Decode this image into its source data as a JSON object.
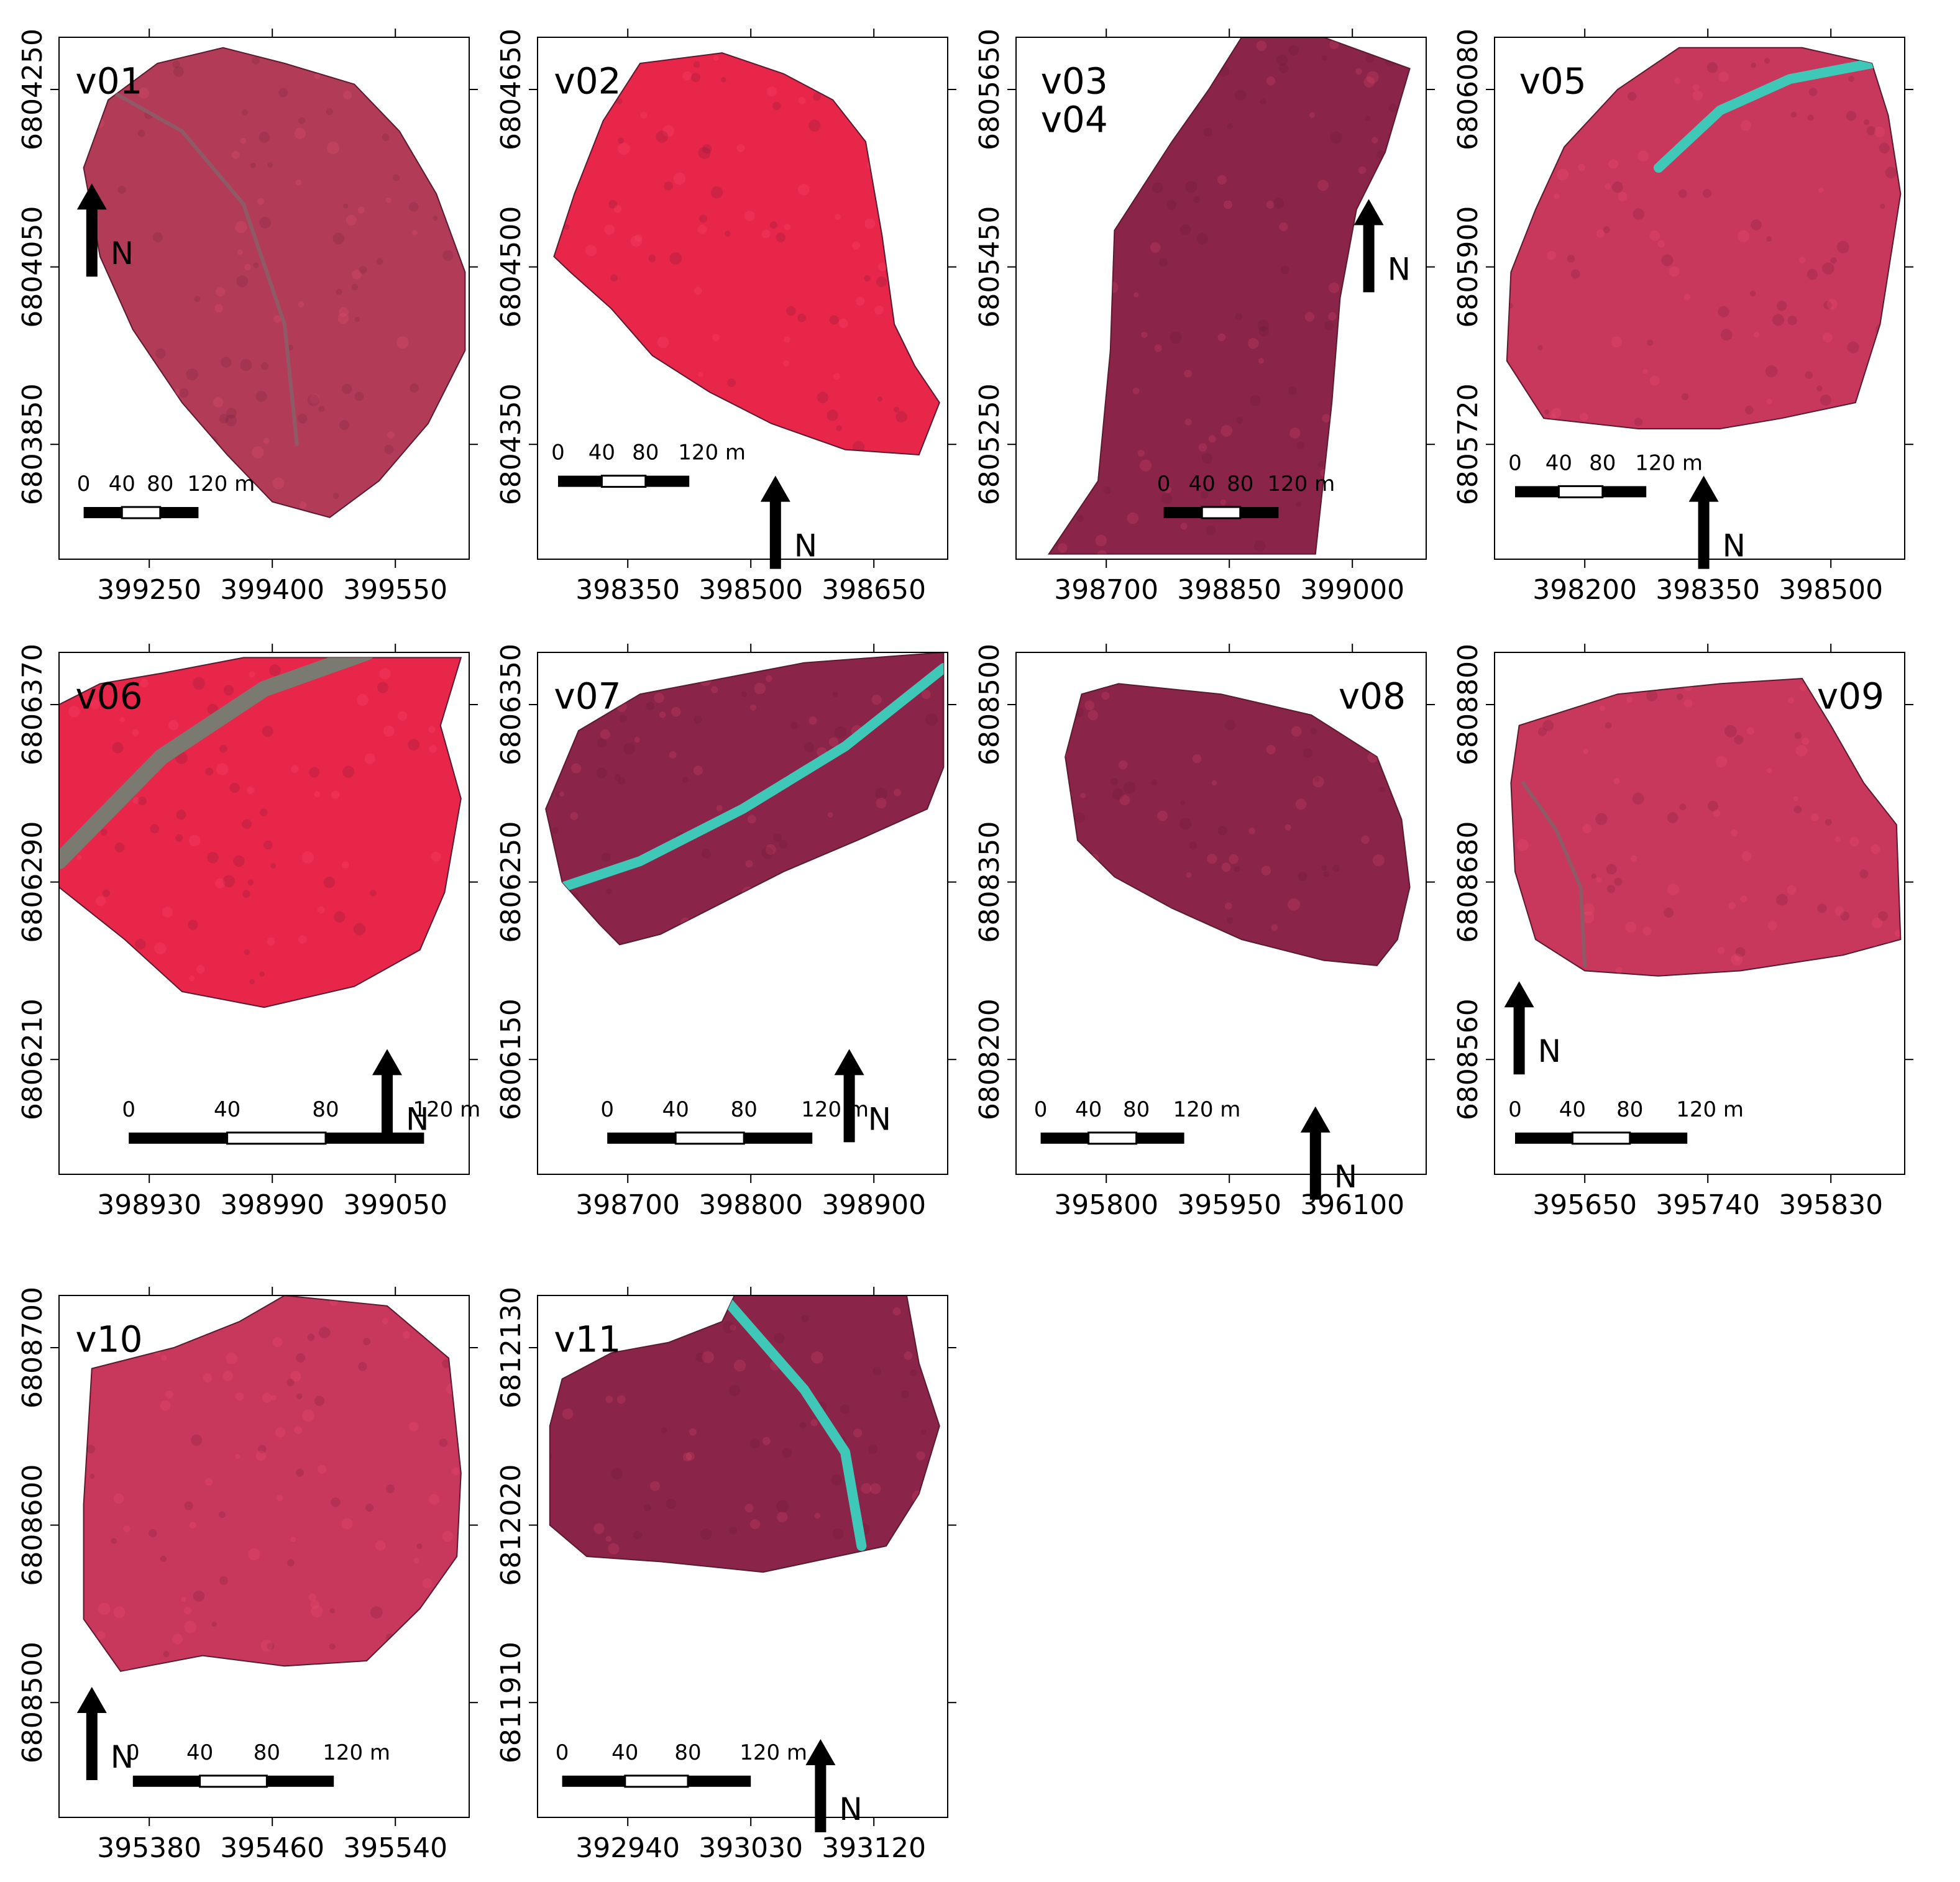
{
  "figure": {
    "panels": [
      {
        "id": "p1",
        "labels": [
          "v01"
        ],
        "x_ticks": [
          "399250",
          "399400",
          "399550"
        ],
        "y_ticks": [
          "6804250",
          "6804050",
          "6803850"
        ],
        "y_ticks_side": "left",
        "scale": {
          "ticks": [
            "0",
            "40",
            "80",
            "120 m"
          ]
        },
        "north": "N",
        "road": "faint",
        "tone": "dull"
      },
      {
        "id": "p2",
        "labels": [
          "v02"
        ],
        "x_ticks": [
          "398350",
          "398500",
          "398650"
        ],
        "y_ticks": [
          "6804650",
          "6804500",
          "6804350"
        ],
        "y_ticks_side": "left",
        "scale": {
          "ticks": [
            "0",
            "40",
            "80",
            "120 m"
          ]
        },
        "north": "N",
        "road": "none",
        "tone": "bright"
      },
      {
        "id": "p3",
        "labels": [
          "v03",
          "v04"
        ],
        "x_ticks": [
          "398700",
          "398850",
          "399000"
        ],
        "y_ticks": [
          "6805650",
          "6805450",
          "6805250"
        ],
        "y_ticks_side": "left",
        "scale": {
          "ticks": [
            "0",
            "40",
            "80",
            "120 m"
          ]
        },
        "north": "N",
        "road": "none",
        "tone": "dark"
      },
      {
        "id": "p4",
        "labels": [
          "v05"
        ],
        "x_ticks": [
          "398200",
          "398350",
          "398500"
        ],
        "y_ticks": [
          "6806080",
          "6805900",
          "6805720"
        ],
        "y_ticks_side": "left",
        "scale": {
          "ticks": [
            "0",
            "40",
            "80",
            "120 m"
          ]
        },
        "north": "N",
        "road": "cyan",
        "tone": "medium"
      },
      {
        "id": "p5",
        "labels": [
          "v06"
        ],
        "x_ticks": [
          "398930",
          "398990",
          "399050"
        ],
        "y_ticks": [
          "6806370",
          "6806290",
          "6806210"
        ],
        "y_ticks_side": "left",
        "scale": {
          "ticks": [
            "0",
            "40",
            "80",
            "120 m"
          ]
        },
        "north": "N",
        "road": "gray",
        "tone": "bright"
      },
      {
        "id": "p6",
        "labels": [
          "v07"
        ],
        "x_ticks": [
          "398700",
          "398800",
          "398900"
        ],
        "y_ticks": [
          "6806350",
          "6806250",
          "6806150"
        ],
        "y_ticks_side": "left",
        "scale": {
          "ticks": [
            "0",
            "40",
            "80",
            "120 m"
          ]
        },
        "north": "N",
        "road": "cyan",
        "tone": "dark"
      },
      {
        "id": "p7",
        "labels": [
          "v08"
        ],
        "x_ticks": [
          "395800",
          "395950",
          "396100"
        ],
        "y_ticks": [
          "6808500",
          "6808350",
          "6808200"
        ],
        "y_ticks_side": "left",
        "scale": {
          "ticks": [
            "0",
            "40",
            "80",
            "120 m"
          ]
        },
        "north": "N",
        "road": "none",
        "tone": "dark"
      },
      {
        "id": "p8",
        "labels": [
          "v09"
        ],
        "x_ticks": [
          "395650",
          "395740",
          "395830"
        ],
        "y_ticks": [
          "6808800",
          "6808680",
          "6808560"
        ],
        "y_ticks_side": "left",
        "scale": {
          "ticks": [
            "0",
            "40",
            "80",
            "120 m"
          ]
        },
        "north": "N",
        "road": "faint",
        "tone": "medium"
      },
      {
        "id": "p9",
        "labels": [
          "v10"
        ],
        "x_ticks": [
          "395380",
          "395460",
          "395540"
        ],
        "y_ticks": [
          "6808700",
          "6808600",
          "6808500"
        ],
        "y_ticks_side": "left",
        "scale": {
          "ticks": [
            "0",
            "40",
            "80",
            "120 m"
          ]
        },
        "north": "N",
        "road": "none",
        "tone": "medium"
      },
      {
        "id": "p10",
        "labels": [
          "v11"
        ],
        "x_ticks": [
          "392940",
          "393030",
          "393120"
        ],
        "y_ticks": [
          "6812130",
          "6812020",
          "6811910"
        ],
        "y_ticks_side": "left",
        "scale": {
          "ticks": [
            "0",
            "40",
            "80",
            "120 m"
          ]
        },
        "north": "N",
        "road": "cyan",
        "tone": "dark"
      }
    ],
    "colors": {
      "frame": "#000000",
      "background": "#ffffff",
      "canopy_bright": "#e8264a",
      "canopy_medium": "#c8375c",
      "canopy_dark": "#8a2448",
      "canopy_dull": "#b23c58",
      "road_cyan": "#3fc8b8",
      "road_gray": "#7a7a70",
      "road_faint": "#8f5a66"
    }
  }
}
